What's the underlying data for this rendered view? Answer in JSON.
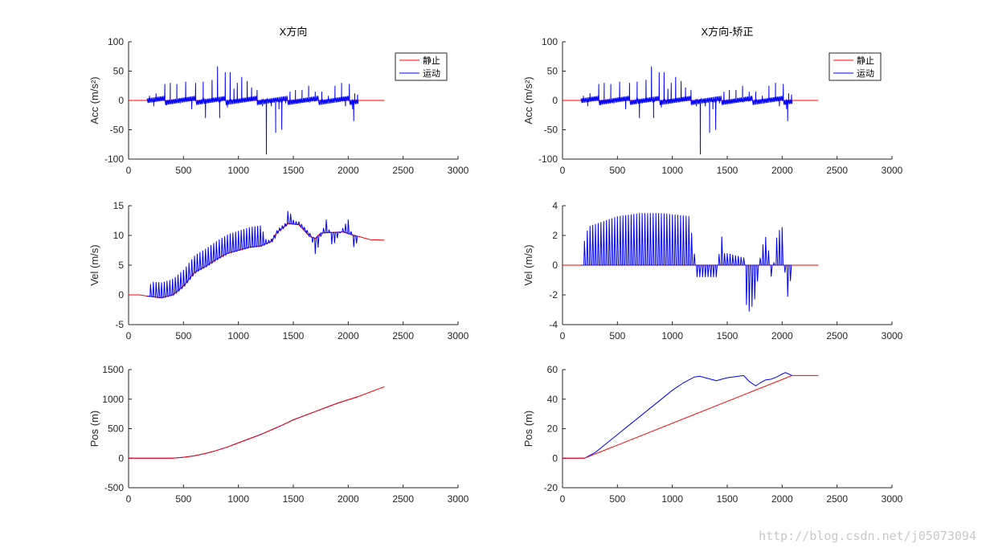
{
  "watermark": "http://blog.csdn.net/j05073094",
  "colors": {
    "static": "#ff0000",
    "moving": "#0000ff",
    "axis": "#262626"
  },
  "legend": {
    "static": "静止",
    "moving": "运动"
  },
  "chart_data": [
    {
      "id": "acc-raw",
      "type": "line",
      "title": "X方向",
      "ylabel": "Acc (m/s²)",
      "xlim": [
        0,
        3000
      ],
      "ylim": [
        -100,
        100
      ],
      "xticks": [
        0,
        500,
        1000,
        1500,
        2000,
        2500,
        3000
      ],
      "yticks": [
        -100,
        -50,
        0,
        50,
        100
      ],
      "legend": true,
      "legend_position": "top-right",
      "series": [
        {
          "name": "静止",
          "color": "#ff0000",
          "x": [
            0,
            160,
            2330
          ],
          "y": [
            0,
            0,
            0
          ]
        },
        {
          "name": "运动",
          "color": "#0000ff",
          "kind": "spikes",
          "xrange": [
            170,
            2090
          ],
          "spikes": [
            [
              190,
              8
            ],
            [
              230,
              -10
            ],
            [
              250,
              12
            ],
            [
              330,
              28
            ],
            [
              345,
              -8
            ],
            [
              380,
              30
            ],
            [
              440,
              28
            ],
            [
              470,
              -5
            ],
            [
              520,
              32
            ],
            [
              575,
              -15
            ],
            [
              610,
              30
            ],
            [
              680,
              32
            ],
            [
              700,
              -30
            ],
            [
              760,
              35
            ],
            [
              810,
              58
            ],
            [
              830,
              -30
            ],
            [
              880,
              48
            ],
            [
              900,
              -12
            ],
            [
              925,
              48
            ],
            [
              960,
              20
            ],
            [
              990,
              30
            ],
            [
              1030,
              40
            ],
            [
              1080,
              33
            ],
            [
              1120,
              22
            ],
            [
              1170,
              18
            ],
            [
              1220,
              -10
            ],
            [
              1255,
              -92
            ],
            [
              1300,
              -10
            ],
            [
              1340,
              -55
            ],
            [
              1370,
              -15
            ],
            [
              1395,
              -50
            ],
            [
              1430,
              -5
            ],
            [
              1470,
              15
            ],
            [
              1520,
              18
            ],
            [
              1580,
              18
            ],
            [
              1640,
              25
            ],
            [
              1700,
              15
            ],
            [
              1760,
              15
            ],
            [
              1820,
              8
            ],
            [
              1880,
              25
            ],
            [
              1940,
              30
            ],
            [
              1975,
              -10
            ],
            [
              2010,
              28
            ],
            [
              2040,
              -15
            ],
            [
              2050,
              -35
            ],
            [
              2060,
              12
            ],
            [
              2085,
              10
            ]
          ]
        }
      ]
    },
    {
      "id": "acc-corr",
      "type": "line",
      "title": "X方向-矫正",
      "ylabel": "Acc (m/s²)",
      "xlim": [
        0,
        3000
      ],
      "ylim": [
        -100,
        100
      ],
      "xticks": [
        0,
        500,
        1000,
        1500,
        2000,
        2500,
        3000
      ],
      "yticks": [
        -100,
        -50,
        0,
        50,
        100
      ],
      "legend": true,
      "legend_position": "top-right",
      "series": [
        {
          "name": "静止",
          "color": "#ff0000",
          "x": [
            0,
            160,
            2330
          ],
          "y": [
            0,
            0,
            0
          ]
        },
        {
          "name": "运动",
          "color": "#0000ff",
          "kind": "spikes",
          "xrange": [
            170,
            2090
          ],
          "spikes": [
            [
              190,
              8
            ],
            [
              230,
              -10
            ],
            [
              250,
              12
            ],
            [
              330,
              28
            ],
            [
              345,
              -8
            ],
            [
              380,
              30
            ],
            [
              440,
              28
            ],
            [
              470,
              -5
            ],
            [
              520,
              32
            ],
            [
              575,
              -15
            ],
            [
              610,
              30
            ],
            [
              680,
              32
            ],
            [
              700,
              -30
            ],
            [
              760,
              35
            ],
            [
              810,
              58
            ],
            [
              830,
              -30
            ],
            [
              880,
              48
            ],
            [
              900,
              -12
            ],
            [
              925,
              48
            ],
            [
              960,
              20
            ],
            [
              990,
              30
            ],
            [
              1030,
              40
            ],
            [
              1080,
              33
            ],
            [
              1120,
              22
            ],
            [
              1170,
              18
            ],
            [
              1220,
              -10
            ],
            [
              1255,
              -92
            ],
            [
              1300,
              -10
            ],
            [
              1340,
              -55
            ],
            [
              1370,
              -15
            ],
            [
              1395,
              -50
            ],
            [
              1430,
              -5
            ],
            [
              1470,
              15
            ],
            [
              1520,
              18
            ],
            [
              1580,
              18
            ],
            [
              1640,
              25
            ],
            [
              1700,
              15
            ],
            [
              1760,
              15
            ],
            [
              1820,
              8
            ],
            [
              1880,
              25
            ],
            [
              1940,
              30
            ],
            [
              1975,
              -10
            ],
            [
              2010,
              28
            ],
            [
              2040,
              -15
            ],
            [
              2050,
              -35
            ],
            [
              2060,
              12
            ],
            [
              2085,
              10
            ]
          ]
        }
      ]
    },
    {
      "id": "vel-raw",
      "type": "line",
      "ylabel": "Vel (m/s)",
      "xlim": [
        0,
        3000
      ],
      "ylim": [
        -5,
        15
      ],
      "xticks": [
        0,
        500,
        1000,
        1500,
        2000,
        2500,
        3000
      ],
      "yticks": [
        -5,
        0,
        5,
        10,
        15
      ],
      "legend": false,
      "series": [
        {
          "name": "静止",
          "color": "#ff0000",
          "x": [
            0,
            100,
            170,
            250,
            300,
            400,
            500,
            600,
            700,
            800,
            900,
            1000,
            1100,
            1200,
            1300,
            1350,
            1450,
            1550,
            1650,
            1700,
            1750,
            1850,
            1950,
            2050,
            2100,
            2200,
            2330
          ],
          "y": [
            0,
            0,
            -0.2,
            -0.4,
            -0.5,
            0,
            1.5,
            3.8,
            4.8,
            6,
            7,
            7.5,
            8,
            8.2,
            9,
            10.5,
            12,
            11.8,
            9.8,
            9.5,
            10.4,
            10.5,
            10.6,
            10,
            9.8,
            9.3,
            9.2
          ]
        },
        {
          "name": "运动",
          "color": "#0000ff",
          "kind": "oscillating",
          "xrange": [
            170,
            2090
          ],
          "base_x": [
            170,
            250,
            300,
            400,
            500,
            600,
            700,
            800,
            900,
            1000,
            1100,
            1200,
            1300,
            1350,
            1450,
            1550,
            1650,
            1700,
            1750,
            1850,
            1950,
            2050,
            2090
          ],
          "base_y": [
            -0.2,
            -0.4,
            -0.5,
            0,
            1.5,
            3.8,
            4.8,
            6,
            7,
            7.5,
            8,
            8.2,
            9,
            10.5,
            12,
            11.8,
            9.8,
            9.5,
            10.4,
            10.5,
            10.6,
            10,
            9.8
          ],
          "period": 25,
          "amp_x": [
            170,
            200,
            1200,
            1250,
            1420,
            1450,
            1500,
            1650,
            1700,
            1800,
            1850,
            2000,
            2050,
            2090
          ],
          "amp_y": [
            0,
            2.5,
            3.5,
            0.5,
            0.5,
            2.5,
            0.5,
            0.5,
            -3,
            2.5,
            -2.5,
            2.5,
            -2.5,
            0
          ]
        }
      ]
    },
    {
      "id": "vel-corr",
      "type": "line",
      "ylabel": "Vel (m/s)",
      "xlim": [
        0,
        3000
      ],
      "ylim": [
        -4,
        4
      ],
      "xticks": [
        0,
        500,
        1000,
        1500,
        2000,
        2500,
        3000
      ],
      "yticks": [
        -4,
        -2,
        0,
        2,
        4
      ],
      "legend": false,
      "series": [
        {
          "name": "静止",
          "color": "#ff0000",
          "x": [
            0,
            2330
          ],
          "y": [
            0,
            0
          ]
        },
        {
          "name": "运动",
          "color": "#0000ff",
          "kind": "oscillating",
          "xrange": [
            170,
            2090
          ],
          "base_x": [
            170,
            2090
          ],
          "base_y": [
            0,
            0
          ],
          "period": 25,
          "amp_x": [
            170,
            190,
            230,
            500,
            700,
            900,
            1150,
            1200,
            1220,
            1400,
            1440,
            1460,
            1500,
            1650,
            1660,
            1700,
            1750,
            1790,
            1800,
            1850,
            1880,
            1900,
            1950,
            2000,
            2020,
            2040,
            2060,
            2090
          ],
          "amp_y": [
            0,
            1.5,
            2.6,
            3.3,
            3.5,
            3.5,
            3.3,
            0.5,
            -0.8,
            -0.8,
            2.3,
            0.8,
            0.8,
            0.5,
            -2.5,
            -3.2,
            -2.2,
            0,
            1.0,
            2.0,
            0.5,
            -1.2,
            2.2,
            2.6,
            -0.5,
            -2.3,
            -1.6,
            0
          ]
        }
      ]
    },
    {
      "id": "pos-raw",
      "type": "line",
      "ylabel": "Pos (m)",
      "xlim": [
        0,
        3000
      ],
      "ylim": [
        -500,
        1500
      ],
      "xticks": [
        0,
        500,
        1000,
        1500,
        2000,
        2500,
        3000
      ],
      "yticks": [
        -500,
        0,
        500,
        1000,
        1500
      ],
      "legend": false,
      "series": [
        {
          "name": "运动",
          "color": "#0000ff",
          "x": [
            0,
            170,
            300,
            400,
            500,
            600,
            700,
            800,
            900,
            1000,
            1100,
            1200,
            1300,
            1400,
            1500,
            1600,
            1700,
            1800,
            1900,
            2000,
            2090
          ],
          "y": [
            0,
            0,
            0,
            0,
            15,
            40,
            80,
            130,
            190,
            260,
            330,
            400,
            480,
            560,
            650,
            720,
            790,
            860,
            930,
            990,
            1040
          ]
        },
        {
          "name": "静止",
          "color": "#ff0000",
          "x": [
            0,
            170,
            300,
            400,
            500,
            600,
            700,
            800,
            900,
            1000,
            1100,
            1200,
            1300,
            1400,
            1500,
            1600,
            1700,
            1800,
            1900,
            2000,
            2100,
            2200,
            2330
          ],
          "y": [
            0,
            0,
            0,
            0,
            15,
            40,
            80,
            130,
            190,
            260,
            330,
            400,
            480,
            560,
            650,
            720,
            790,
            860,
            930,
            990,
            1050,
            1120,
            1210
          ]
        }
      ]
    },
    {
      "id": "pos-corr",
      "type": "line",
      "ylabel": "Pos (m)",
      "xlim": [
        0,
        3000
      ],
      "ylim": [
        -20,
        60
      ],
      "xticks": [
        0,
        500,
        1000,
        1500,
        2000,
        2500,
        3000
      ],
      "yticks": [
        -20,
        0,
        20,
        40,
        60
      ],
      "legend": false,
      "series": [
        {
          "name": "运动",
          "color": "#0000ff",
          "x": [
            0,
            170,
            200,
            300,
            400,
            500,
            600,
            700,
            800,
            900,
            1000,
            1100,
            1200,
            1250,
            1300,
            1400,
            1450,
            1500,
            1550,
            1600,
            1650,
            1700,
            1760,
            1800,
            1850,
            1900,
            1950,
            2000,
            2030,
            2060,
            2090
          ],
          "y": [
            0,
            0,
            0,
            4,
            10,
            16,
            22,
            28,
            34,
            40,
            46,
            51,
            55,
            55.5,
            54.5,
            52.5,
            53.5,
            54.5,
            55,
            55.5,
            56,
            52,
            49,
            51,
            53,
            53.5,
            55,
            57,
            58,
            57,
            56
          ]
        },
        {
          "name": "静止",
          "color": "#ff0000",
          "x": [
            0,
            170,
            200,
            2090,
            2330
          ],
          "y": [
            0,
            0,
            0,
            56,
            56
          ]
        }
      ]
    }
  ]
}
